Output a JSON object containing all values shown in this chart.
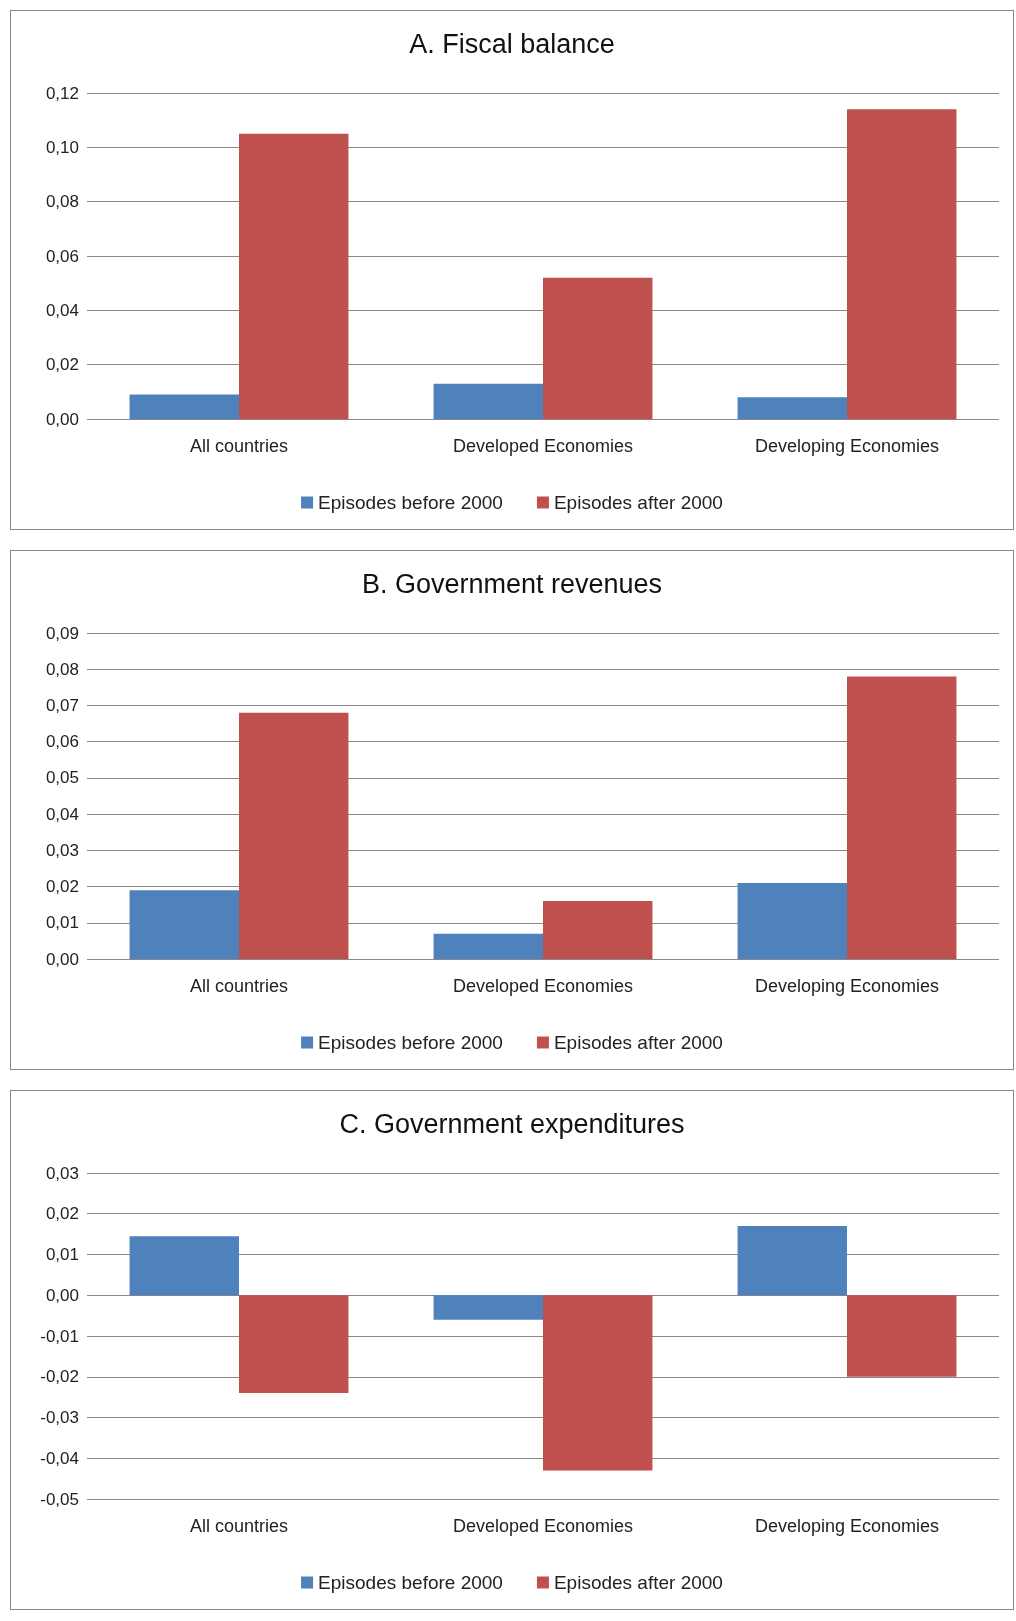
{
  "chart_data": [
    {
      "type": "bar",
      "title": "A. Fiscal balance",
      "categories": [
        "All countries",
        "Developed Economies",
        "Developing Economies"
      ],
      "series": [
        {
          "name": "Episodes before 2000",
          "color": "#4f81bd",
          "values": [
            0.009,
            0.013,
            0.008
          ]
        },
        {
          "name": "Episodes after 2000",
          "color": "#c0504d",
          "values": [
            0.105,
            0.052,
            0.114
          ]
        }
      ],
      "ylim": [
        0,
        0.12
      ],
      "yticks": [
        {
          "value": 0,
          "label": "0,00"
        },
        {
          "value": 0.02,
          "label": "0,02"
        },
        {
          "value": 0.04,
          "label": "0,04"
        },
        {
          "value": 0.06,
          "label": "0,06"
        },
        {
          "value": 0.08,
          "label": "0,08"
        },
        {
          "value": 0.1,
          "label": "0,10"
        },
        {
          "value": 0.12,
          "label": "0,12"
        }
      ],
      "grid": "y",
      "legend": "bottom"
    },
    {
      "type": "bar",
      "title": "B. Government revenues",
      "categories": [
        "All countries",
        "Developed Economies",
        "Developing Economies"
      ],
      "series": [
        {
          "name": "Episodes before 2000",
          "color": "#4f81bd",
          "values": [
            0.019,
            0.007,
            0.021
          ]
        },
        {
          "name": "Episodes after 2000",
          "color": "#c0504d",
          "values": [
            0.068,
            0.016,
            0.078
          ]
        }
      ],
      "ylim": [
        0,
        0.09
      ],
      "yticks": [
        {
          "value": 0,
          "label": "0,00"
        },
        {
          "value": 0.01,
          "label": "0,01"
        },
        {
          "value": 0.02,
          "label": "0,02"
        },
        {
          "value": 0.03,
          "label": "0,03"
        },
        {
          "value": 0.04,
          "label": "0,04"
        },
        {
          "value": 0.05,
          "label": "0,05"
        },
        {
          "value": 0.06,
          "label": "0,06"
        },
        {
          "value": 0.07,
          "label": "0,07"
        },
        {
          "value": 0.08,
          "label": "0,08"
        },
        {
          "value": 0.09,
          "label": "0,09"
        }
      ],
      "grid": "y",
      "legend": "bottom"
    },
    {
      "type": "bar",
      "title": "C. Government expenditures",
      "categories": [
        "All countries",
        "Developed Economies",
        "Developing Economies"
      ],
      "series": [
        {
          "name": "Episodes before 2000",
          "color": "#4f81bd",
          "values": [
            0.0145,
            -0.006,
            0.017
          ]
        },
        {
          "name": "Episodes after 2000",
          "color": "#c0504d",
          "values": [
            -0.024,
            -0.043,
            -0.02
          ]
        }
      ],
      "ylim": [
        -0.05,
        0.03
      ],
      "yticks": [
        {
          "value": -0.05,
          "label": "-0,05"
        },
        {
          "value": -0.04,
          "label": "-0,04"
        },
        {
          "value": -0.03,
          "label": "-0,03"
        },
        {
          "value": -0.02,
          "label": "-0,02"
        },
        {
          "value": -0.01,
          "label": "-0,01"
        },
        {
          "value": 0,
          "label": "0,00"
        },
        {
          "value": 0.01,
          "label": "0,01"
        },
        {
          "value": 0.02,
          "label": "0,02"
        },
        {
          "value": 0.03,
          "label": "0,03"
        }
      ],
      "grid": "y",
      "legend": "bottom"
    }
  ]
}
